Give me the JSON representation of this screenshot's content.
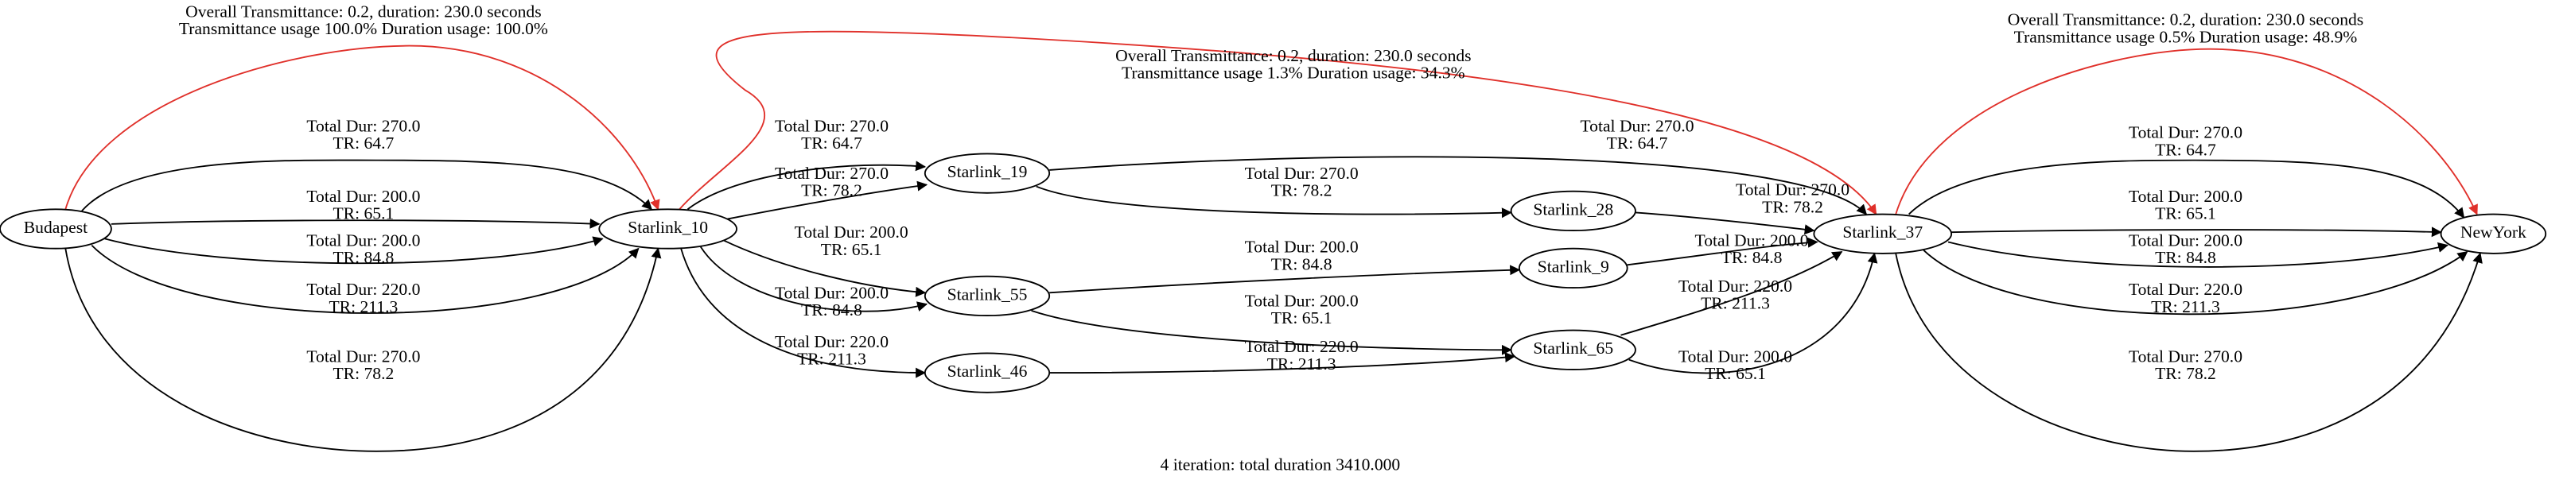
{
  "nodes": [
    "Budapest",
    "Starlink_10",
    "Starlink_19",
    "Starlink_55",
    "Starlink_46",
    "Starlink_28",
    "Starlink_9",
    "Starlink_65",
    "Starlink_37",
    "NewYork"
  ],
  "edges": [
    {
      "lines": [
        "Total Dur: 270.0",
        "TR: 64.7"
      ]
    },
    {
      "lines": [
        "Total Dur: 200.0",
        "TR: 65.1"
      ]
    },
    {
      "lines": [
        "Total Dur: 200.0",
        "TR: 84.8"
      ]
    },
    {
      "lines": [
        "Total Dur: 220.0",
        "TR: 211.3"
      ]
    },
    {
      "lines": [
        "Total Dur: 270.0",
        "TR: 78.2"
      ]
    },
    {
      "lines": [
        "Overall Transmittance: 0.2, duration: 230.0 seconds",
        "Transmittance usage 100.0% Duration usage: 100.0%"
      ]
    },
    {
      "lines": [
        "Total Dur: 270.0",
        "TR: 64.7"
      ]
    },
    {
      "lines": [
        "Total Dur: 270.0",
        "TR: 78.2"
      ]
    },
    {
      "lines": [
        "Total Dur: 200.0",
        "TR: 65.1"
      ]
    },
    {
      "lines": [
        "Total Dur: 200.0",
        "TR: 84.8"
      ]
    },
    {
      "lines": [
        "Total Dur: 220.0",
        "TR: 211.3"
      ]
    },
    {
      "lines": [
        "Overall Transmittance: 0.2, duration: 230.0 seconds",
        "Transmittance usage 1.3% Duration usage: 34.3%"
      ]
    },
    {
      "lines": [
        "Total Dur: 270.0",
        "TR: 64.7"
      ]
    },
    {
      "lines": [
        "Total Dur: 270.0",
        "TR: 78.2"
      ]
    },
    {
      "lines": [
        "Total Dur: 270.0",
        "TR: 78.2"
      ]
    },
    {
      "lines": [
        "Total Dur: 200.0",
        "TR: 84.8"
      ]
    },
    {
      "lines": [
        "Total Dur: 200.0",
        "TR: 84.8"
      ]
    },
    {
      "lines": [
        "Total Dur: 200.0",
        "TR: 65.1"
      ]
    },
    {
      "lines": [
        "Total Dur: 220.0",
        "TR: 211.3"
      ]
    },
    {
      "lines": [
        "Total Dur: 220.0",
        "TR: 211.3"
      ]
    },
    {
      "lines": [
        "Total Dur: 200.0",
        "TR: 65.1"
      ]
    },
    {
      "lines": [
        "Total Dur: 270.0",
        "TR: 64.7"
      ]
    },
    {
      "lines": [
        "Total Dur: 200.0",
        "TR: 65.1"
      ]
    },
    {
      "lines": [
        "Total Dur: 200.0",
        "TR: 84.8"
      ]
    },
    {
      "lines": [
        "Total Dur: 220.0",
        "TR: 211.3"
      ]
    },
    {
      "lines": [
        "Total Dur: 270.0",
        "TR: 78.2"
      ]
    },
    {
      "lines": [
        "Overall Transmittance: 0.2, duration: 230.0 seconds",
        "Transmittance usage 0.5% Duration usage: 48.9%"
      ]
    }
  ],
  "footer": "4 iteration: total duration 3410.000"
}
